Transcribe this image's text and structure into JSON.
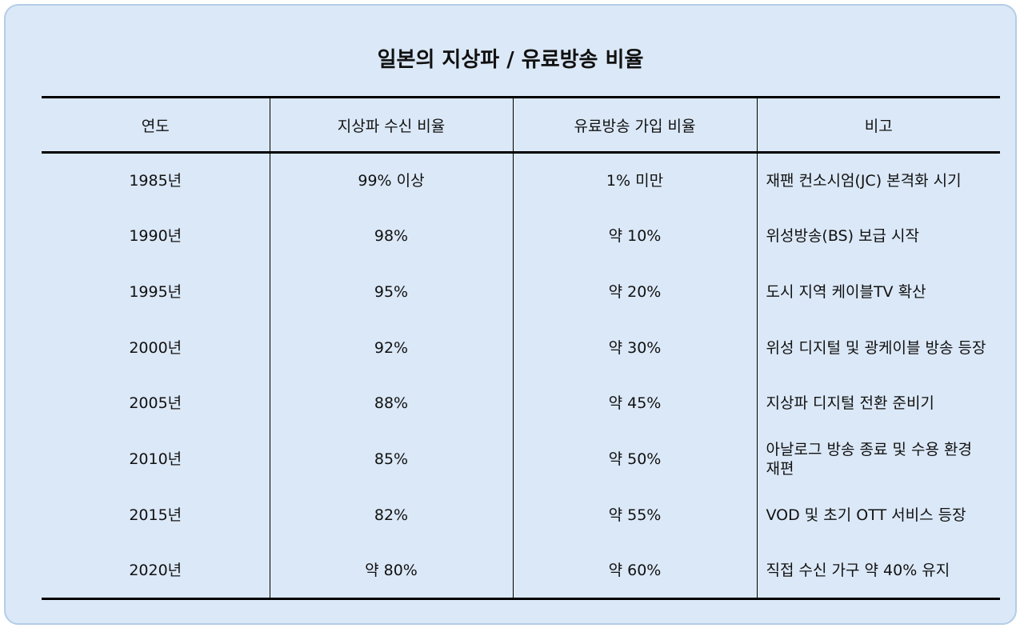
{
  "title": "일본의 지상파 / 유료방송 비율",
  "table": {
    "headers": [
      "연도",
      "지상파 수신 비율",
      "유료방송 가입 비율",
      "비고"
    ],
    "rows": [
      [
        "1985년",
        "99% 이상",
        "1% 미만",
        "재팬 컨소시엄(JC) 본격화 시기"
      ],
      [
        "1990년",
        "98%",
        "약 10%",
        "위성방송(BS) 보급 시작"
      ],
      [
        "1995년",
        "95%",
        "약 20%",
        "도시 지역 케이블TV 확산"
      ],
      [
        "2000년",
        "92%",
        "약 30%",
        "위성 디지털 및 광케이블 방송 등장"
      ],
      [
        "2005년",
        "88%",
        "약 45%",
        "지상파 디지털 전환 준비기"
      ],
      [
        "2010년",
        "85%",
        "약 50%",
        "아날로그 방송 종료 및 수용 환경 재편"
      ],
      [
        "2015년",
        "82%",
        "약 55%",
        "VOD 및 초기 OTT 서비스 등장"
      ],
      [
        "2020년",
        "약 80%",
        "약 60%",
        "직접 수신 가구 약 40% 유지"
      ]
    ]
  }
}
